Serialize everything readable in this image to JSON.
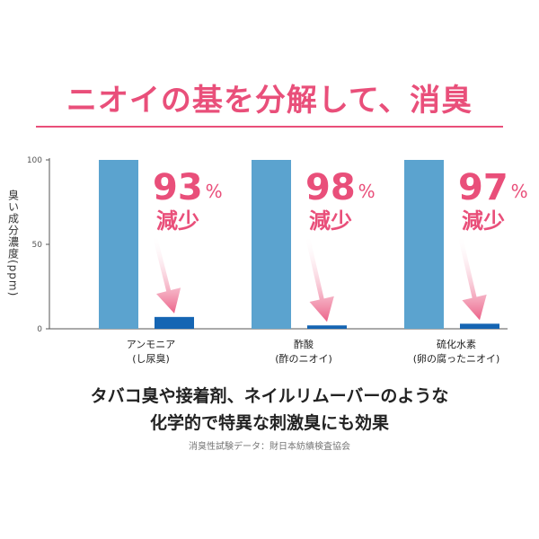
{
  "headline": "ニオイの基を分解して、消臭",
  "colors": {
    "accent": "#e94f7a",
    "bar_before": "#5ba3cf",
    "bar_after": "#1565b3",
    "axis": "#555555"
  },
  "chart_data": {
    "type": "bar",
    "ylabel": "臭い成分濃度(ppm)",
    "ylim": [
      0,
      100
    ],
    "yticks": [
      "100",
      "50",
      "0"
    ],
    "categories": [
      {
        "name": "アンモニア",
        "sub": "(し尿臭)"
      },
      {
        "name": "酢酸",
        "sub": "(酢のニオイ)"
      },
      {
        "name": "硫化水素",
        "sub": "(卵の腐ったニオイ)"
      }
    ],
    "series": [
      {
        "values": [
          100,
          100,
          100
        ]
      },
      {
        "values": [
          7,
          2,
          3
        ]
      }
    ],
    "annotations": [
      {
        "value": "93",
        "unit": "%",
        "text": "減少"
      },
      {
        "value": "98",
        "unit": "%",
        "text": "減少"
      },
      {
        "value": "97",
        "unit": "%",
        "text": "減少"
      }
    ],
    "grid": false
  },
  "tagline": {
    "line1": "タバコ臭や接着剤、ネイルリムーバーのような",
    "line2": "化学的で特異な刺激臭にも効果"
  },
  "source": "消臭性試験データ：財日本紡績検査協会"
}
